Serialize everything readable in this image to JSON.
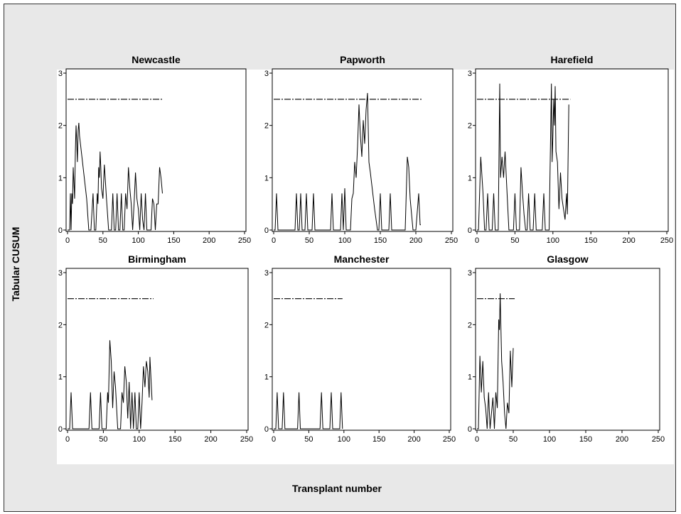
{
  "ylabel": "Tabular CUSUM",
  "xlabel": "Transplant number",
  "chart_data": [
    {
      "type": "line",
      "title": "Newcastle",
      "xlim": [
        0,
        250
      ],
      "ylim": [
        0,
        3
      ],
      "xticks": [
        0,
        50,
        100,
        150,
        200,
        250
      ],
      "yticks": [
        0,
        1,
        2,
        3
      ],
      "threshold": {
        "value": 2.5,
        "x_end": 135
      },
      "series": [
        {
          "values": [
            [
              0,
              0
            ],
            [
              3,
              0
            ],
            [
              4,
              0.7
            ],
            [
              5,
              0
            ],
            [
              6,
              0.7
            ],
            [
              7,
              0.5
            ],
            [
              8,
              1.2
            ],
            [
              9,
              0.9
            ],
            [
              10,
              0.6
            ],
            [
              11,
              1.5
            ],
            [
              12,
              2.0
            ],
            [
              13,
              1.7
            ],
            [
              14,
              1.3
            ],
            [
              15,
              1.9
            ],
            [
              16,
              2.05
            ],
            [
              17,
              1.8
            ],
            [
              22,
              1.2
            ],
            [
              27,
              0.6
            ],
            [
              30,
              0
            ],
            [
              33,
              0
            ],
            [
              36,
              0.7
            ],
            [
              38,
              0
            ],
            [
              40,
              0
            ],
            [
              42,
              0.7
            ],
            [
              43,
              0.5
            ],
            [
              44,
              1.2
            ],
            [
              45,
              1.0
            ],
            [
              46,
              1.5
            ],
            [
              47,
              1.2
            ],
            [
              48,
              0.8
            ],
            [
              50,
              0.6
            ],
            [
              52,
              1.25
            ],
            [
              55,
              0.6
            ],
            [
              58,
              0
            ],
            [
              62,
              0
            ],
            [
              64,
              0.7
            ],
            [
              66,
              0
            ],
            [
              68,
              0
            ],
            [
              70,
              0.7
            ],
            [
              72,
              0
            ],
            [
              74,
              0
            ],
            [
              76,
              0.7
            ],
            [
              78,
              0
            ],
            [
              80,
              0
            ],
            [
              82,
              0.7
            ],
            [
              84,
              0.4
            ],
            [
              86,
              1.2
            ],
            [
              88,
              0.8
            ],
            [
              90,
              0.5
            ],
            [
              92,
              0
            ],
            [
              94,
              0.5
            ],
            [
              96,
              1.1
            ],
            [
              98,
              0.6
            ],
            [
              100,
              0.4
            ],
            [
              102,
              0
            ],
            [
              104,
              0.7
            ],
            [
              106,
              0.2
            ],
            [
              108,
              0
            ],
            [
              110,
              0.7
            ],
            [
              112,
              0
            ],
            [
              118,
              0
            ],
            [
              120,
              0.6
            ],
            [
              122,
              0.5
            ],
            [
              124,
              0
            ],
            [
              126,
              0.5
            ],
            [
              128,
              0.5
            ],
            [
              130,
              1.2
            ],
            [
              132,
              1.0
            ],
            [
              134,
              0.7
            ]
          ]
        }
      ]
    },
    {
      "type": "line",
      "title": "Papworth",
      "xlim": [
        0,
        250
      ],
      "ylim": [
        0,
        3
      ],
      "xticks": [
        0,
        50,
        100,
        150,
        200,
        250
      ],
      "yticks": [
        0,
        1,
        2,
        3
      ],
      "threshold": {
        "value": 2.5,
        "x_end": 210
      },
      "series": [
        {
          "values": [
            [
              0,
              0
            ],
            [
              2,
              0
            ],
            [
              4,
              0.7
            ],
            [
              6,
              0
            ],
            [
              30,
              0
            ],
            [
              32,
              0.7
            ],
            [
              34,
              0
            ],
            [
              36,
              0
            ],
            [
              38,
              0.7
            ],
            [
              40,
              0
            ],
            [
              44,
              0
            ],
            [
              46,
              0.7
            ],
            [
              48,
              0
            ],
            [
              54,
              0
            ],
            [
              56,
              0.7
            ],
            [
              58,
              0
            ],
            [
              80,
              0
            ],
            [
              82,
              0.7
            ],
            [
              84,
              0
            ],
            [
              94,
              0
            ],
            [
              96,
              0.7
            ],
            [
              98,
              0
            ],
            [
              100,
              0.8
            ],
            [
              102,
              0
            ],
            [
              108,
              0
            ],
            [
              110,
              0.6
            ],
            [
              112,
              0.7
            ],
            [
              114,
              1.3
            ],
            [
              116,
              1.0
            ],
            [
              118,
              1.6
            ],
            [
              120,
              2.4
            ],
            [
              122,
              1.8
            ],
            [
              124,
              1.4
            ],
            [
              126,
              2.1
            ],
            [
              128,
              1.65
            ],
            [
              130,
              2.3
            ],
            [
              132,
              2.62
            ],
            [
              134,
              1.3
            ],
            [
              136,
              1.1
            ],
            [
              142,
              0.4
            ],
            [
              146,
              0
            ],
            [
              148,
              0
            ],
            [
              150,
              0.7
            ],
            [
              152,
              0
            ],
            [
              162,
              0
            ],
            [
              164,
              0.7
            ],
            [
              166,
              0
            ],
            [
              185,
              0
            ],
            [
              188,
              1.4
            ],
            [
              190,
              1.2
            ],
            [
              192,
              0.6
            ],
            [
              196,
              0
            ],
            [
              200,
              0
            ],
            [
              204,
              0.7
            ],
            [
              206,
              0.1
            ],
            [
              207,
              0.1
            ]
          ]
        }
      ]
    },
    {
      "type": "line",
      "title": "Harefield",
      "xlim": [
        0,
        250
      ],
      "ylim": [
        0,
        3
      ],
      "xticks": [
        0,
        50,
        100,
        150,
        200,
        250
      ],
      "yticks": [
        0,
        1,
        2,
        3
      ],
      "threshold": {
        "value": 2.5,
        "x_end": 123
      },
      "series": [
        {
          "values": [
            [
              0,
              0
            ],
            [
              2,
              0
            ],
            [
              5,
              1.4
            ],
            [
              8,
              0.7
            ],
            [
              10,
              0
            ],
            [
              12,
              0
            ],
            [
              14,
              0.7
            ],
            [
              16,
              0
            ],
            [
              20,
              0
            ],
            [
              22,
              0.7
            ],
            [
              24,
              0
            ],
            [
              28,
              0
            ],
            [
              30,
              2.8
            ],
            [
              31,
              1.0
            ],
            [
              33,
              1.4
            ],
            [
              35,
              1.0
            ],
            [
              37,
              1.5
            ],
            [
              40,
              0.6
            ],
            [
              42,
              0
            ],
            [
              48,
              0
            ],
            [
              50,
              0.7
            ],
            [
              52,
              0
            ],
            [
              56,
              0
            ],
            [
              58,
              1.2
            ],
            [
              60,
              0.7
            ],
            [
              62,
              0.3
            ],
            [
              64,
              0
            ],
            [
              66,
              0
            ],
            [
              68,
              0.7
            ],
            [
              70,
              0
            ],
            [
              74,
              0
            ],
            [
              76,
              0.7
            ],
            [
              78,
              0
            ],
            [
              86,
              0
            ],
            [
              88,
              0.7
            ],
            [
              90,
              0
            ],
            [
              95,
              0
            ],
            [
              98,
              2.8
            ],
            [
              99,
              1.3
            ],
            [
              100,
              1.8
            ],
            [
              101,
              2.5
            ],
            [
              102,
              2.0
            ],
            [
              103,
              2.75
            ],
            [
              104,
              1.5
            ],
            [
              106,
              1.3
            ],
            [
              108,
              0.4
            ],
            [
              110,
              1.1
            ],
            [
              112,
              0.6
            ],
            [
              116,
              0.2
            ],
            [
              118,
              0.7
            ],
            [
              119,
              0.3
            ],
            [
              121,
              2.4
            ]
          ]
        }
      ]
    },
    {
      "type": "line",
      "title": "Birmingham",
      "xlim": [
        0,
        250
      ],
      "ylim": [
        0,
        3
      ],
      "xticks": [
        0,
        50,
        100,
        150,
        200,
        250
      ],
      "yticks": [
        0,
        1,
        2,
        3
      ],
      "threshold": {
        "value": 2.5,
        "x_end": 120
      },
      "series": [
        {
          "values": [
            [
              0,
              0
            ],
            [
              3,
              0
            ],
            [
              5,
              0.7
            ],
            [
              7,
              0
            ],
            [
              30,
              0
            ],
            [
              32,
              0.7
            ],
            [
              34,
              0
            ],
            [
              44,
              0
            ],
            [
              46,
              0.7
            ],
            [
              48,
              0
            ],
            [
              54,
              0
            ],
            [
              56,
              0.7
            ],
            [
              57,
              0.5
            ],
            [
              59,
              1.7
            ],
            [
              61,
              1.3
            ],
            [
              63,
              0.4
            ],
            [
              65,
              1.1
            ],
            [
              67,
              0.8
            ],
            [
              70,
              0
            ],
            [
              74,
              0
            ],
            [
              76,
              0.7
            ],
            [
              78,
              0.5
            ],
            [
              80,
              1.2
            ],
            [
              82,
              0.9
            ],
            [
              84,
              0.2
            ],
            [
              86,
              0.9
            ],
            [
              88,
              0
            ],
            [
              90,
              0.7
            ],
            [
              92,
              0
            ],
            [
              94,
              0.7
            ],
            [
              96,
              0
            ],
            [
              98,
              0
            ],
            [
              100,
              0.7
            ],
            [
              102,
              0
            ],
            [
              104,
              0.5
            ],
            [
              106,
              1.2
            ],
            [
              108,
              0.8
            ],
            [
              110,
              1.3
            ],
            [
              112,
              1.1
            ],
            [
              114,
              0.6
            ],
            [
              115,
              1.38
            ],
            [
              118,
              0.55
            ]
          ]
        }
      ]
    },
    {
      "type": "line",
      "title": "Manchester",
      "xlim": [
        0,
        250
      ],
      "ylim": [
        0,
        3
      ],
      "xticks": [
        0,
        50,
        100,
        150,
        200,
        250
      ],
      "yticks": [
        0,
        1,
        2,
        3
      ],
      "threshold": {
        "value": 2.5,
        "x_end": 98
      },
      "series": [
        {
          "values": [
            [
              0,
              0
            ],
            [
              3,
              0
            ],
            [
              5,
              0.7
            ],
            [
              7,
              0
            ],
            [
              12,
              0
            ],
            [
              14,
              0.7
            ],
            [
              16,
              0
            ],
            [
              34,
              0
            ],
            [
              36,
              0.7
            ],
            [
              38,
              0
            ],
            [
              66,
              0
            ],
            [
              68,
              0.7
            ],
            [
              70,
              0
            ],
            [
              80,
              0
            ],
            [
              82,
              0.7
            ],
            [
              84,
              0
            ],
            [
              94,
              0
            ],
            [
              96,
              0.7
            ],
            [
              98,
              0
            ]
          ]
        }
      ]
    },
    {
      "type": "line",
      "title": "Glasgow",
      "xlim": [
        0,
        250
      ],
      "ylim": [
        0,
        3
      ],
      "xticks": [
        0,
        50,
        100,
        150,
        200,
        250
      ],
      "yticks": [
        0,
        1,
        2,
        3
      ],
      "threshold": {
        "value": 2.5,
        "x_end": 52
      },
      "series": [
        {
          "values": [
            [
              0,
              0
            ],
            [
              2,
              0
            ],
            [
              4,
              1.4
            ],
            [
              6,
              0.7
            ],
            [
              8,
              1.3
            ],
            [
              10,
              0.6
            ],
            [
              12,
              0.4
            ],
            [
              14,
              0
            ],
            [
              16,
              0.7
            ],
            [
              18,
              0
            ],
            [
              22,
              0.6
            ],
            [
              24,
              0
            ],
            [
              26,
              0.7
            ],
            [
              28,
              0.4
            ],
            [
              30,
              2.1
            ],
            [
              31,
              1.9
            ],
            [
              32,
              2.6
            ],
            [
              34,
              1.3
            ],
            [
              36,
              0.9
            ],
            [
              38,
              0.3
            ],
            [
              40,
              0
            ],
            [
              42,
              0.5
            ],
            [
              44,
              0.3
            ],
            [
              46,
              1.5
            ],
            [
              48,
              0.8
            ],
            [
              50,
              1.55
            ]
          ]
        }
      ]
    }
  ]
}
